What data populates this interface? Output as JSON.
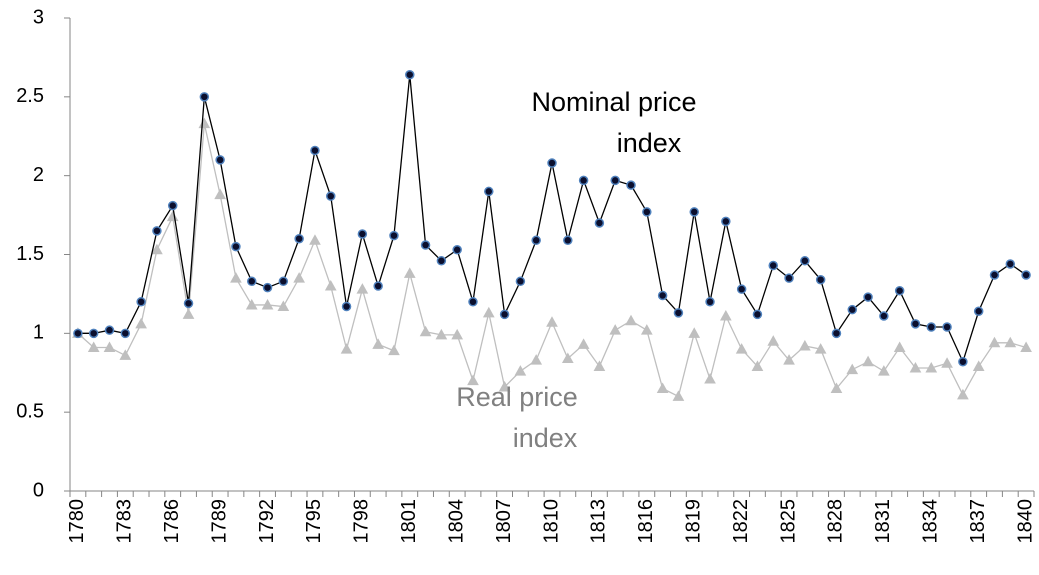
{
  "chart_data": {
    "type": "line",
    "categories": [
      1780,
      null,
      null,
      1783,
      null,
      null,
      1786,
      null,
      null,
      1789,
      null,
      null,
      1792,
      null,
      null,
      1795,
      null,
      null,
      1798,
      null,
      null,
      1801,
      null,
      null,
      1804,
      null,
      null,
      1807,
      null,
      null,
      1810,
      null,
      null,
      1813,
      null,
      null,
      1816,
      null,
      null,
      1819,
      null,
      null,
      1822,
      null,
      null,
      1825,
      null,
      null,
      1828,
      null,
      null,
      1831,
      null,
      null,
      1834,
      null,
      null,
      1837,
      null,
      null,
      1840
    ],
    "series": [
      {
        "color": "#000000",
        "marker": "circle",
        "marker_color": "#0b0f2e",
        "marker_edge": "#4f81bd",
        "values": [
          1.0,
          1.0,
          1.02,
          1.0,
          1.2,
          1.65,
          1.81,
          1.19,
          2.5,
          2.1,
          1.55,
          1.33,
          1.29,
          1.33,
          1.6,
          2.16,
          1.87,
          1.17,
          1.63,
          1.3,
          1.62,
          2.64,
          1.56,
          1.46,
          1.53,
          1.2,
          1.9,
          1.12,
          1.33,
          1.59,
          2.08,
          1.59,
          1.97,
          1.7,
          1.97,
          1.94,
          1.77,
          1.24,
          1.13,
          1.77,
          1.2,
          1.71,
          1.28,
          1.12,
          1.43,
          1.35,
          1.46,
          1.34,
          1.0,
          1.15,
          1.23,
          1.11,
          1.27,
          1.06,
          1.04,
          1.04,
          0.82,
          1.14,
          1.37,
          1.44,
          1.37
        ]
      },
      {
        "color": "#bfbfbf",
        "marker": "triangle",
        "marker_color": "#bfbfbf",
        "marker_edge": "#bfbfbf",
        "values": [
          1.0,
          0.91,
          0.91,
          0.86,
          1.06,
          1.53,
          1.74,
          1.12,
          2.33,
          1.88,
          1.35,
          1.18,
          1.18,
          1.17,
          1.35,
          1.59,
          1.3,
          0.9,
          1.28,
          0.93,
          0.89,
          1.38,
          1.01,
          0.99,
          0.99,
          0.7,
          1.13,
          0.66,
          0.76,
          0.83,
          1.07,
          0.84,
          0.93,
          0.79,
          1.02,
          1.08,
          1.02,
          0.65,
          0.6,
          1.0,
          0.71,
          1.11,
          0.9,
          0.79,
          0.95,
          0.83,
          0.92,
          0.9,
          0.65,
          0.77,
          0.82,
          0.76,
          0.91,
          0.78,
          0.78,
          0.81,
          0.61,
          0.79,
          0.94,
          0.94,
          0.91
        ]
      }
    ],
    "annotations": [
      {
        "lines": [
          "Nominal price",
          "index"
        ],
        "color": "#000000"
      },
      {
        "lines": [
          "Real price",
          "index"
        ],
        "color": "#808080"
      }
    ],
    "ylim": [
      0,
      3
    ],
    "yticks": [
      0,
      0.5,
      1,
      1.5,
      2,
      2.5,
      3
    ],
    "grid": false
  }
}
